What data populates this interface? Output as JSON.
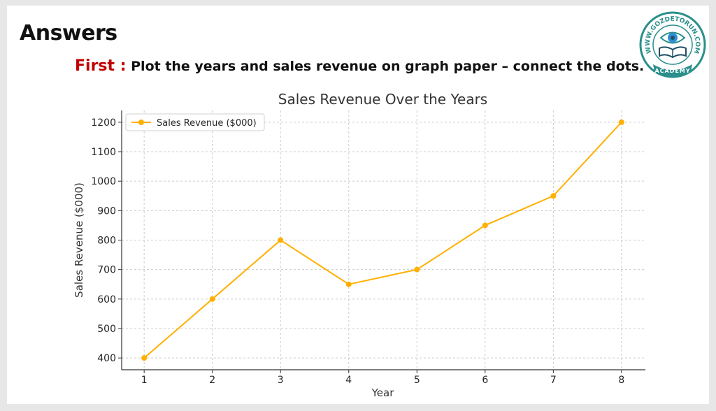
{
  "slide": {
    "title": "Answers",
    "instruction_lead": "First :",
    "instruction_text": "Plot the years and sales revenue on graph paper – connect the dots."
  },
  "logo": {
    "arc_text": "WWW.GOZDETORUN.COM",
    "banner_text": "ACADEMY",
    "colors": {
      "ring": "#2a8f8b",
      "eye": "#2e8fd6",
      "book": "#1f4f66"
    }
  },
  "chart_data": {
    "type": "line",
    "title": "Sales Revenue Over the Years",
    "xlabel": "Year",
    "ylabel": "Sales Revenue ($000)",
    "x": [
      1,
      2,
      3,
      4,
      5,
      6,
      7,
      8
    ],
    "series": [
      {
        "name": "Sales Revenue ($000)",
        "values": [
          400,
          600,
          800,
          650,
          700,
          850,
          950,
          1200
        ],
        "color": "#ffb000"
      }
    ],
    "xticks": [
      "1",
      "2",
      "3",
      "4",
      "5",
      "6",
      "7",
      "8"
    ],
    "yticks": [
      400,
      500,
      600,
      700,
      800,
      900,
      1000,
      1100,
      1200
    ],
    "xlim": [
      0.67,
      8.35
    ],
    "ylim": [
      360,
      1240
    ],
    "grid": true,
    "legend": "top-left"
  }
}
